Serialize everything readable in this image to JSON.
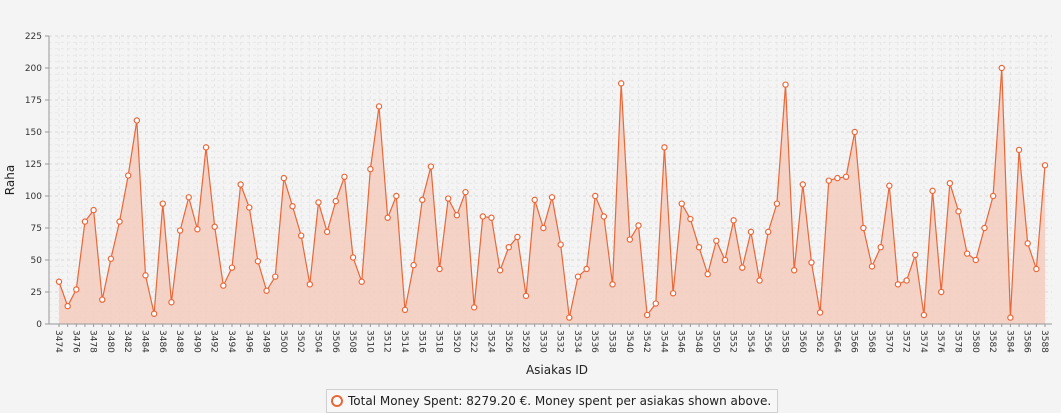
{
  "chart_data": {
    "type": "area",
    "title": "",
    "xlabel": "Asiakas ID",
    "ylabel": "Raha",
    "ylim": [
      0,
      225
    ],
    "yticks": [
      0,
      25,
      50,
      75,
      100,
      125,
      150,
      175,
      200,
      225
    ],
    "x_tick_step": 2,
    "grid": true,
    "color": "#e8683a",
    "fill_color": "#f4cbbd",
    "x": [
      3474,
      3475,
      3476,
      3477,
      3478,
      3479,
      3480,
      3481,
      3482,
      3483,
      3484,
      3485,
      3486,
      3487,
      3488,
      3489,
      3490,
      3491,
      3492,
      3493,
      3494,
      3495,
      3496,
      3497,
      3498,
      3499,
      3500,
      3501,
      3502,
      3503,
      3504,
      3505,
      3506,
      3507,
      3508,
      3509,
      3510,
      3511,
      3512,
      3513,
      3514,
      3515,
      3516,
      3517,
      3518,
      3519,
      3520,
      3521,
      3522,
      3523,
      3524,
      3525,
      3526,
      3527,
      3528,
      3529,
      3530,
      3531,
      3532,
      3533,
      3534,
      3535,
      3536,
      3537,
      3538,
      3539,
      3540,
      3541,
      3542,
      3543,
      3544,
      3545,
      3546,
      3547,
      3548,
      3549,
      3550,
      3551,
      3552,
      3553,
      3554,
      3555,
      3556,
      3557,
      3558,
      3559,
      3560,
      3561,
      3562,
      3563,
      3564,
      3565,
      3566,
      3567,
      3568,
      3569,
      3570,
      3571,
      3572,
      3573,
      3574,
      3575,
      3576,
      3577,
      3578,
      3579,
      3580,
      3581,
      3582,
      3583,
      3584,
      3585,
      3586,
      3587,
      3588
    ],
    "series": [
      {
        "name": "Total Money Spent: 8279.20 €.   Money spent per asiakas shown above.",
        "values": [
          33,
          14,
          27,
          80,
          89,
          19,
          51,
          80,
          116,
          159,
          38,
          8,
          94,
          17,
          73,
          99,
          74,
          138,
          76,
          30,
          44,
          109,
          91,
          49,
          26,
          37,
          114,
          92,
          69,
          31,
          95,
          72,
          96,
          115,
          52,
          33,
          121,
          170,
          83,
          100,
          11,
          46,
          97,
          123,
          43,
          98,
          85,
          103,
          13,
          84,
          83,
          42,
          60,
          68,
          22,
          97,
          75,
          99,
          62,
          5,
          37,
          43,
          100,
          84,
          31,
          188,
          66,
          77,
          7,
          16,
          138,
          24,
          94,
          82,
          60,
          39,
          65,
          50,
          81,
          44,
          72,
          34,
          72,
          94,
          187,
          42,
          109,
          48,
          9,
          112,
          114,
          115,
          150,
          75,
          45,
          60,
          108,
          31,
          34,
          54,
          7,
          104,
          25,
          110,
          88,
          55,
          50,
          75,
          100,
          200,
          5,
          136,
          63,
          43,
          124
        ]
      }
    ]
  }
}
